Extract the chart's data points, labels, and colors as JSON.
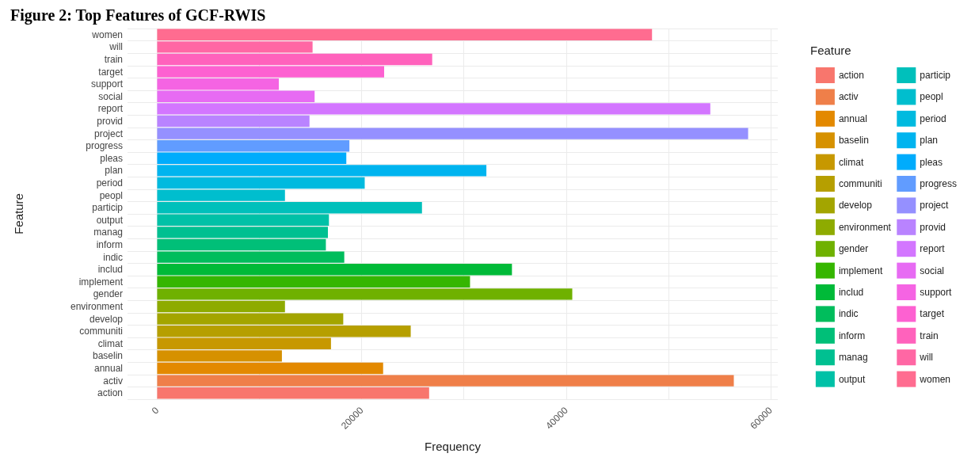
{
  "chart_data": {
    "type": "bar",
    "orientation": "horizontal",
    "title": "Figure 2: Top Features of GCF-RWIS",
    "xlabel": "Frequency",
    "ylabel": "Feature",
    "legend_title": "Feature",
    "legend": "right",
    "grid": true,
    "categories": [
      "women",
      "will",
      "train",
      "target",
      "support",
      "social",
      "report",
      "provid",
      "project",
      "progress",
      "pleas",
      "plan",
      "period",
      "peopl",
      "particip",
      "output",
      "manag",
      "inform",
      "indic",
      "includ",
      "implement",
      "gender",
      "environment",
      "develop",
      "communiti",
      "climat",
      "baselin",
      "annual",
      "activ",
      "action"
    ],
    "series": [
      {
        "name": "women",
        "color": "#FF6C90",
        "values": [
          48400,
          null,
          null,
          null,
          null,
          null,
          null,
          null,
          null,
          null,
          null,
          null,
          null,
          null,
          null,
          null,
          null,
          null,
          null,
          null,
          null,
          null,
          null,
          null,
          null,
          null,
          null,
          null,
          null,
          null
        ]
      },
      {
        "name": "will",
        "color": "#FF67A4",
        "values": [
          null,
          15200,
          null,
          null,
          null,
          null,
          null,
          null,
          null,
          null,
          null,
          null,
          null,
          null,
          null,
          null,
          null,
          null,
          null,
          null,
          null,
          null,
          null,
          null,
          null,
          null,
          null,
          null,
          null,
          null
        ]
      },
      {
        "name": "train",
        "color": "#FF62BC",
        "values": [
          null,
          null,
          26900,
          null,
          null,
          null,
          null,
          null,
          null,
          null,
          null,
          null,
          null,
          null,
          null,
          null,
          null,
          null,
          null,
          null,
          null,
          null,
          null,
          null,
          null,
          null,
          null,
          null,
          null,
          null
        ]
      },
      {
        "name": "target",
        "color": "#FD61D1",
        "values": [
          null,
          null,
          null,
          22200,
          null,
          null,
          null,
          null,
          null,
          null,
          null,
          null,
          null,
          null,
          null,
          null,
          null,
          null,
          null,
          null,
          null,
          null,
          null,
          null,
          null,
          null,
          null,
          null,
          null,
          null
        ]
      },
      {
        "name": "support",
        "color": "#F564E3",
        "values": [
          null,
          null,
          null,
          null,
          11900,
          null,
          null,
          null,
          null,
          null,
          null,
          null,
          null,
          null,
          null,
          null,
          null,
          null,
          null,
          null,
          null,
          null,
          null,
          null,
          null,
          null,
          null,
          null,
          null,
          null
        ]
      },
      {
        "name": "social",
        "color": "#E76BF3",
        "values": [
          null,
          null,
          null,
          null,
          null,
          15400,
          null,
          null,
          null,
          null,
          null,
          null,
          null,
          null,
          null,
          null,
          null,
          null,
          null,
          null,
          null,
          null,
          null,
          null,
          null,
          null,
          null,
          null,
          null,
          null
        ]
      },
      {
        "name": "report",
        "color": "#D376FF",
        "values": [
          null,
          null,
          null,
          null,
          null,
          null,
          54100,
          null,
          null,
          null,
          null,
          null,
          null,
          null,
          null,
          null,
          null,
          null,
          null,
          null,
          null,
          null,
          null,
          null,
          null,
          null,
          null,
          null,
          null,
          null
        ]
      },
      {
        "name": "provid",
        "color": "#B983FF",
        "values": [
          null,
          null,
          null,
          null,
          null,
          null,
          null,
          14900,
          null,
          null,
          null,
          null,
          null,
          null,
          null,
          null,
          null,
          null,
          null,
          null,
          null,
          null,
          null,
          null,
          null,
          null,
          null,
          null,
          null,
          null
        ]
      },
      {
        "name": "project",
        "color": "#9590FF",
        "values": [
          null,
          null,
          null,
          null,
          null,
          null,
          null,
          null,
          57800,
          null,
          null,
          null,
          null,
          null,
          null,
          null,
          null,
          null,
          null,
          null,
          null,
          null,
          null,
          null,
          null,
          null,
          null,
          null,
          null,
          null
        ]
      },
      {
        "name": "progress",
        "color": "#619CFF",
        "values": [
          null,
          null,
          null,
          null,
          null,
          null,
          null,
          null,
          null,
          18800,
          null,
          null,
          null,
          null,
          null,
          null,
          null,
          null,
          null,
          null,
          null,
          null,
          null,
          null,
          null,
          null,
          null,
          null,
          null,
          null
        ]
      },
      {
        "name": "pleas",
        "color": "#00ACFC",
        "values": [
          null,
          null,
          null,
          null,
          null,
          null,
          null,
          null,
          null,
          null,
          18500,
          null,
          null,
          null,
          null,
          null,
          null,
          null,
          null,
          null,
          null,
          null,
          null,
          null,
          null,
          null,
          null,
          null,
          null,
          null
        ]
      },
      {
        "name": "plan",
        "color": "#00B4EF",
        "values": [
          null,
          null,
          null,
          null,
          null,
          null,
          null,
          null,
          null,
          null,
          null,
          32200,
          null,
          null,
          null,
          null,
          null,
          null,
          null,
          null,
          null,
          null,
          null,
          null,
          null,
          null,
          null,
          null,
          null,
          null
        ]
      },
      {
        "name": "period",
        "color": "#00BADF",
        "values": [
          null,
          null,
          null,
          null,
          null,
          null,
          null,
          null,
          null,
          null,
          null,
          null,
          20300,
          null,
          null,
          null,
          null,
          null,
          null,
          null,
          null,
          null,
          null,
          null,
          null,
          null,
          null,
          null,
          null,
          null
        ]
      },
      {
        "name": "peopl",
        "color": "#00BECE",
        "values": [
          null,
          null,
          null,
          null,
          null,
          null,
          null,
          null,
          null,
          null,
          null,
          null,
          null,
          12500,
          null,
          null,
          null,
          null,
          null,
          null,
          null,
          null,
          null,
          null,
          null,
          null,
          null,
          null,
          null,
          null
        ]
      },
      {
        "name": "particip",
        "color": "#00C0BB",
        "values": [
          null,
          null,
          null,
          null,
          null,
          null,
          null,
          null,
          null,
          null,
          null,
          null,
          null,
          null,
          25900,
          null,
          null,
          null,
          null,
          null,
          null,
          null,
          null,
          null,
          null,
          null,
          null,
          null,
          null,
          null
        ]
      },
      {
        "name": "output",
        "color": "#00C1A7",
        "values": [
          null,
          null,
          null,
          null,
          null,
          null,
          null,
          null,
          null,
          null,
          null,
          null,
          null,
          null,
          null,
          16800,
          null,
          null,
          null,
          null,
          null,
          null,
          null,
          null,
          null,
          null,
          null,
          null,
          null,
          null
        ]
      },
      {
        "name": "manag",
        "color": "#00C091",
        "values": [
          null,
          null,
          null,
          null,
          null,
          null,
          null,
          null,
          null,
          null,
          null,
          null,
          null,
          null,
          null,
          null,
          16700,
          null,
          null,
          null,
          null,
          null,
          null,
          null,
          null,
          null,
          null,
          null,
          null,
          null
        ]
      },
      {
        "name": "inform",
        "color": "#00BF78",
        "values": [
          null,
          null,
          null,
          null,
          null,
          null,
          null,
          null,
          null,
          null,
          null,
          null,
          null,
          null,
          null,
          null,
          null,
          16500,
          null,
          null,
          null,
          null,
          null,
          null,
          null,
          null,
          null,
          null,
          null,
          null
        ]
      },
      {
        "name": "indic",
        "color": "#00BD5C",
        "values": [
          null,
          null,
          null,
          null,
          null,
          null,
          null,
          null,
          null,
          null,
          null,
          null,
          null,
          null,
          null,
          null,
          null,
          null,
          18300,
          null,
          null,
          null,
          null,
          null,
          null,
          null,
          null,
          null,
          null,
          null
        ]
      },
      {
        "name": "includ",
        "color": "#00BA38",
        "values": [
          null,
          null,
          null,
          null,
          null,
          null,
          null,
          null,
          null,
          null,
          null,
          null,
          null,
          null,
          null,
          null,
          null,
          null,
          null,
          34700,
          null,
          null,
          null,
          null,
          null,
          null,
          null,
          null,
          null,
          null
        ]
      },
      {
        "name": "implement",
        "color": "#35B600",
        "values": [
          null,
          null,
          null,
          null,
          null,
          null,
          null,
          null,
          null,
          null,
          null,
          null,
          null,
          null,
          null,
          null,
          null,
          null,
          null,
          null,
          30600,
          null,
          null,
          null,
          null,
          null,
          null,
          null,
          null,
          null
        ]
      },
      {
        "name": "gender",
        "color": "#6FB100",
        "values": [
          null,
          null,
          null,
          null,
          null,
          null,
          null,
          null,
          null,
          null,
          null,
          null,
          null,
          null,
          null,
          null,
          null,
          null,
          null,
          null,
          null,
          40600,
          null,
          null,
          null,
          null,
          null,
          null,
          null,
          null
        ]
      },
      {
        "name": "environment",
        "color": "#8EAB00",
        "values": [
          null,
          null,
          null,
          null,
          null,
          null,
          null,
          null,
          null,
          null,
          null,
          null,
          null,
          null,
          null,
          null,
          null,
          null,
          null,
          null,
          null,
          null,
          12500,
          null,
          null,
          null,
          null,
          null,
          null,
          null
        ]
      },
      {
        "name": "develop",
        "color": "#A3A500",
        "values": [
          null,
          null,
          null,
          null,
          null,
          null,
          null,
          null,
          null,
          null,
          null,
          null,
          null,
          null,
          null,
          null,
          null,
          null,
          null,
          null,
          null,
          null,
          null,
          18200,
          null,
          null,
          null,
          null,
          null,
          null
        ]
      },
      {
        "name": "communiti",
        "color": "#B69F00",
        "values": [
          null,
          null,
          null,
          null,
          null,
          null,
          null,
          null,
          null,
          null,
          null,
          null,
          null,
          null,
          null,
          null,
          null,
          null,
          null,
          null,
          null,
          null,
          null,
          null,
          24800,
          null,
          null,
          null,
          null,
          null
        ]
      },
      {
        "name": "climat",
        "color": "#C79800",
        "values": [
          null,
          null,
          null,
          null,
          null,
          null,
          null,
          null,
          null,
          null,
          null,
          null,
          null,
          null,
          null,
          null,
          null,
          null,
          null,
          null,
          null,
          null,
          null,
          null,
          null,
          17000,
          null,
          null,
          null,
          null
        ]
      },
      {
        "name": "baselin",
        "color": "#D69100",
        "values": [
          null,
          null,
          null,
          null,
          null,
          null,
          null,
          null,
          null,
          null,
          null,
          null,
          null,
          null,
          null,
          null,
          null,
          null,
          null,
          null,
          null,
          null,
          null,
          null,
          null,
          null,
          12200,
          null,
          null,
          null
        ]
      },
      {
        "name": "annual",
        "color": "#E38900",
        "values": [
          null,
          null,
          null,
          null,
          null,
          null,
          null,
          null,
          null,
          null,
          null,
          null,
          null,
          null,
          null,
          null,
          null,
          null,
          null,
          null,
          null,
          null,
          null,
          null,
          null,
          null,
          null,
          22100,
          null,
          null
        ]
      },
      {
        "name": "activ",
        "color": "#EF7F49",
        "values": [
          null,
          null,
          null,
          null,
          null,
          null,
          null,
          null,
          null,
          null,
          null,
          null,
          null,
          null,
          null,
          null,
          null,
          null,
          null,
          null,
          null,
          null,
          null,
          null,
          null,
          null,
          null,
          null,
          56400,
          null
        ]
      },
      {
        "name": "action",
        "color": "#F8766D",
        "values": [
          null,
          null,
          null,
          null,
          null,
          null,
          null,
          null,
          null,
          null,
          null,
          null,
          null,
          null,
          null,
          null,
          null,
          null,
          null,
          null,
          null,
          null,
          null,
          null,
          null,
          null,
          null,
          null,
          null,
          26600
        ]
      }
    ],
    "xlim": [
      -2900,
      60700
    ],
    "xticks": [
      0,
      {
        "value": 10000,
        "label": null
      },
      20000,
      {
        "value": 30000,
        "label": null
      },
      40000,
      {
        "value": 50000,
        "label": null
      },
      60000
    ]
  }
}
